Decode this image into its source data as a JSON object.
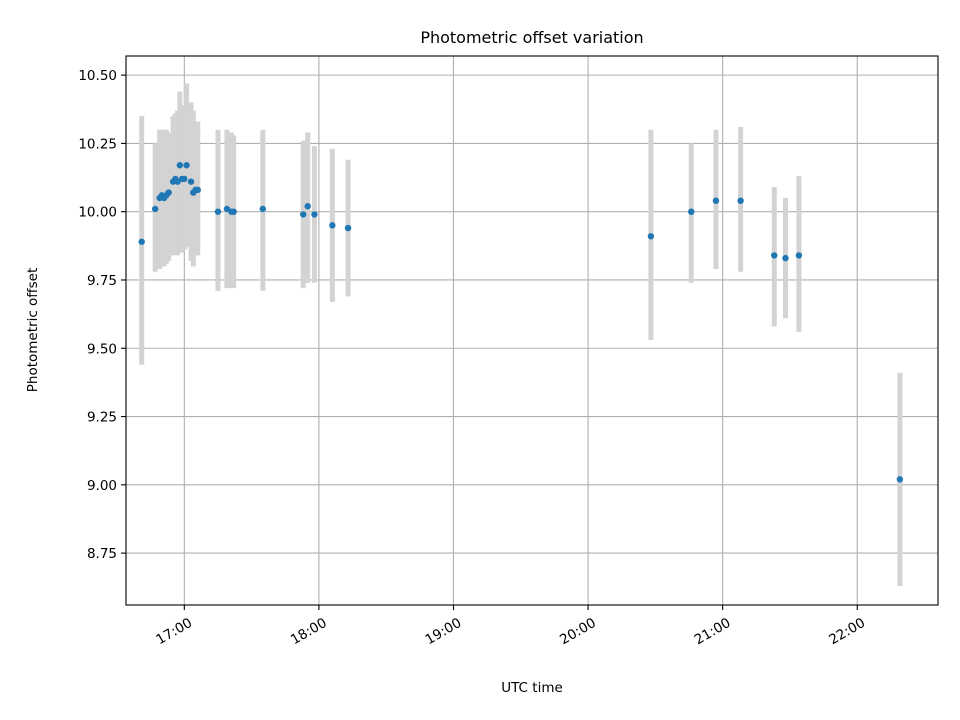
{
  "chart_data": {
    "type": "scatter",
    "title": "Photometric offset variation",
    "xlabel": "UTC time",
    "ylabel": "Photometric offset",
    "xlim": [
      "16:34",
      "22:36"
    ],
    "ylim": [
      8.56,
      10.57
    ],
    "x_ticks": [
      "17:00",
      "18:00",
      "19:00",
      "20:00",
      "21:00",
      "22:00"
    ],
    "y_ticks": [
      8.75,
      9.0,
      9.25,
      9.5,
      9.75,
      10.0,
      10.25,
      10.5
    ],
    "y_tick_labels": [
      "8.75",
      "9.00",
      "9.25",
      "9.50",
      "9.75",
      "10.00",
      "10.25",
      "10.50"
    ],
    "grid": true,
    "colors": {
      "points": "#1f77b4",
      "error_bars": "#d3d3d3",
      "grid": "#b0b0b0"
    },
    "points": [
      {
        "x": "16:41",
        "y": 9.89,
        "lo": 9.44,
        "hi": 10.35
      },
      {
        "x": "16:47",
        "y": 10.01,
        "lo": 9.78,
        "hi": 10.25
      },
      {
        "x": "16:49",
        "y": 10.05,
        "lo": 9.79,
        "hi": 10.3
      },
      {
        "x": "16:50",
        "y": 10.06,
        "lo": 9.8,
        "hi": 10.3
      },
      {
        "x": "16:51",
        "y": 10.05,
        "lo": 9.8,
        "hi": 10.29
      },
      {
        "x": "16:52",
        "y": 10.06,
        "lo": 9.81,
        "hi": 10.3
      },
      {
        "x": "16:53",
        "y": 10.07,
        "lo": 9.82,
        "hi": 10.29
      },
      {
        "x": "16:55",
        "y": 10.11,
        "lo": 9.84,
        "hi": 10.35
      },
      {
        "x": "16:56",
        "y": 10.12,
        "lo": 9.86,
        "hi": 10.36
      },
      {
        "x": "16:57",
        "y": 10.11,
        "lo": 9.84,
        "hi": 10.37
      },
      {
        "x": "16:58",
        "y": 10.17,
        "lo": 9.85,
        "hi": 10.44
      },
      {
        "x": "16:59",
        "y": 10.12,
        "lo": 9.85,
        "hi": 10.38
      },
      {
        "x": "17:00",
        "y": 10.12,
        "lo": 9.86,
        "hi": 10.39
      },
      {
        "x": "17:01",
        "y": 10.17,
        "lo": 9.87,
        "hi": 10.47
      },
      {
        "x": "17:03",
        "y": 10.11,
        "lo": 9.82,
        "hi": 10.4
      },
      {
        "x": "17:04",
        "y": 10.07,
        "lo": 9.8,
        "hi": 10.37
      },
      {
        "x": "17:05",
        "y": 10.08,
        "lo": 9.84,
        "hi": 10.33
      },
      {
        "x": "17:06",
        "y": 10.08,
        "lo": 9.84,
        "hi": 10.33
      },
      {
        "x": "17:15",
        "y": 10.0,
        "lo": 9.71,
        "hi": 10.3
      },
      {
        "x": "17:19",
        "y": 10.01,
        "lo": 9.72,
        "hi": 10.3
      },
      {
        "x": "17:21",
        "y": 10.0,
        "lo": 9.72,
        "hi": 10.29
      },
      {
        "x": "17:22",
        "y": 10.0,
        "lo": 9.72,
        "hi": 10.28
      },
      {
        "x": "17:35",
        "y": 10.01,
        "lo": 9.71,
        "hi": 10.3
      },
      {
        "x": "17:53",
        "y": 9.99,
        "lo": 9.72,
        "hi": 10.26
      },
      {
        "x": "17:55",
        "y": 10.02,
        "lo": 9.74,
        "hi": 10.29
      },
      {
        "x": "17:58",
        "y": 9.99,
        "lo": 9.74,
        "hi": 10.24
      },
      {
        "x": "18:06",
        "y": 9.95,
        "lo": 9.67,
        "hi": 10.23
      },
      {
        "x": "18:13",
        "y": 9.94,
        "lo": 9.69,
        "hi": 10.19
      },
      {
        "x": "20:28",
        "y": 9.91,
        "lo": 9.53,
        "hi": 10.3
      },
      {
        "x": "20:46",
        "y": 10.0,
        "lo": 9.74,
        "hi": 10.25
      },
      {
        "x": "20:57",
        "y": 10.04,
        "lo": 9.79,
        "hi": 10.3
      },
      {
        "x": "21:08",
        "y": 10.04,
        "lo": 9.78,
        "hi": 10.31
      },
      {
        "x": "21:23",
        "y": 9.84,
        "lo": 9.58,
        "hi": 10.09
      },
      {
        "x": "21:28",
        "y": 9.83,
        "lo": 9.61,
        "hi": 10.05
      },
      {
        "x": "21:34",
        "y": 9.84,
        "lo": 9.56,
        "hi": 10.13
      },
      {
        "x": "22:19",
        "y": 9.02,
        "lo": 8.63,
        "hi": 9.41
      }
    ]
  }
}
